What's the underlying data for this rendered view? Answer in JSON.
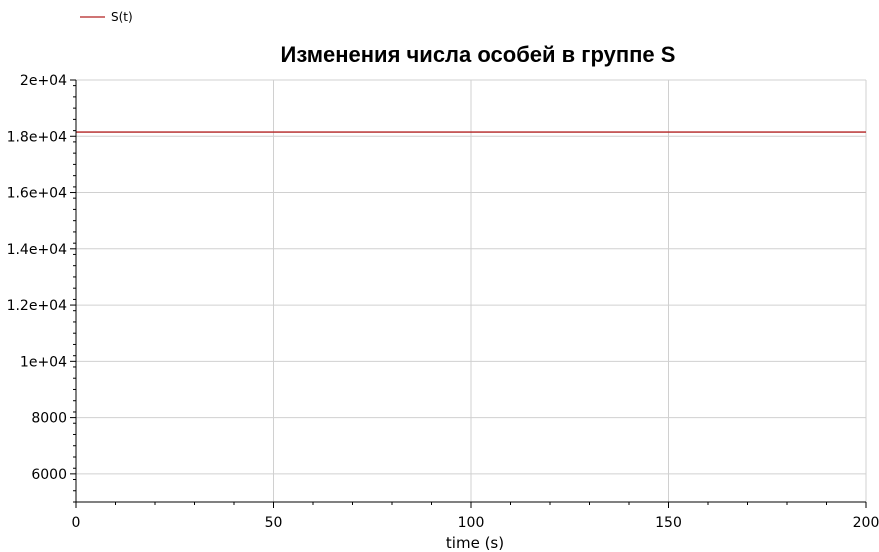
{
  "chart_data": {
    "type": "line",
    "title": "Изменения числа особей в группе S",
    "xlabel": "time (s)",
    "ylabel": "",
    "xlim": [
      0,
      200
    ],
    "ylim": [
      5000,
      20000
    ],
    "grid": true,
    "legend_position": "top-left",
    "x_ticks": [
      {
        "value": 0,
        "label": "0"
      },
      {
        "value": 50,
        "label": "50"
      },
      {
        "value": 100,
        "label": "100"
      },
      {
        "value": 150,
        "label": "150"
      },
      {
        "value": 200,
        "label": "200"
      }
    ],
    "y_ticks": [
      {
        "value": 6000,
        "label": "6000"
      },
      {
        "value": 8000,
        "label": "8000"
      },
      {
        "value": 10000,
        "label": "1e+04"
      },
      {
        "value": 12000,
        "label": "1.2e+04"
      },
      {
        "value": 14000,
        "label": "1.4e+04"
      },
      {
        "value": 16000,
        "label": "1.6e+04"
      },
      {
        "value": 18000,
        "label": "1.8e+04"
      },
      {
        "value": 20000,
        "label": "2e+04"
      }
    ],
    "series": [
      {
        "name": "S(t)",
        "color": "#b22222",
        "x": [
          0,
          200
        ],
        "y": [
          18150,
          18150
        ]
      }
    ]
  }
}
